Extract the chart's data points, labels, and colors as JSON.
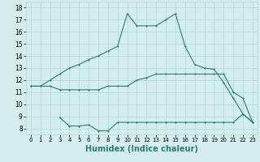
{
  "line1": {
    "x": [
      0,
      1,
      2,
      3,
      4,
      5,
      6,
      7,
      8,
      9,
      10,
      11,
      12,
      13,
      14,
      15,
      16,
      17,
      18,
      19,
      20,
      21,
      22,
      23
    ],
    "y": [
      11.5,
      11.5,
      12.0,
      12.5,
      13.0,
      13.3,
      13.7,
      14.0,
      14.4,
      14.8,
      17.5,
      16.5,
      16.5,
      16.5,
      17.0,
      17.5,
      14.8,
      13.3,
      13.0,
      12.9,
      11.8,
      10.5,
      9.2,
      8.5
    ]
  },
  "line2": {
    "x": [
      0,
      1,
      2,
      3,
      4,
      5,
      6,
      7,
      8,
      9,
      10,
      11,
      12,
      13,
      14,
      15,
      16,
      17,
      18,
      19,
      20,
      21,
      22,
      23
    ],
    "y": [
      11.5,
      11.5,
      11.5,
      11.2,
      11.2,
      11.2,
      11.2,
      11.2,
      11.5,
      11.5,
      11.5,
      12.0,
      12.2,
      12.5,
      12.5,
      12.5,
      12.5,
      12.5,
      12.5,
      12.5,
      12.5,
      11.0,
      10.5,
      8.5
    ]
  },
  "line3": {
    "x": [
      3,
      4,
      5,
      6,
      7,
      8,
      9,
      10,
      11,
      12,
      13,
      14,
      15,
      16,
      17,
      18,
      19,
      20,
      21,
      22,
      23
    ],
    "y": [
      8.9,
      8.2,
      8.2,
      8.3,
      7.8,
      7.8,
      8.5,
      8.5,
      8.5,
      8.5,
      8.5,
      8.5,
      8.5,
      8.5,
      8.5,
      8.5,
      8.5,
      8.5,
      8.5,
      9.2,
      8.5
    ]
  },
  "line_color": "#2e7d6e",
  "bg_color": "#d4eeec",
  "grid_color": "#b0d8d4",
  "xlabel": "Humidex (Indice chaleur)",
  "yticks": [
    8,
    9,
    10,
    11,
    12,
    13,
    14,
    15,
    16,
    17,
    18
  ],
  "xticks": [
    0,
    1,
    2,
    3,
    4,
    5,
    6,
    7,
    8,
    9,
    10,
    11,
    12,
    13,
    14,
    15,
    16,
    17,
    18,
    19,
    20,
    21,
    22,
    23
  ],
  "xlim": [
    -0.5,
    23.5
  ],
  "ylim": [
    7.5,
    18.5
  ]
}
